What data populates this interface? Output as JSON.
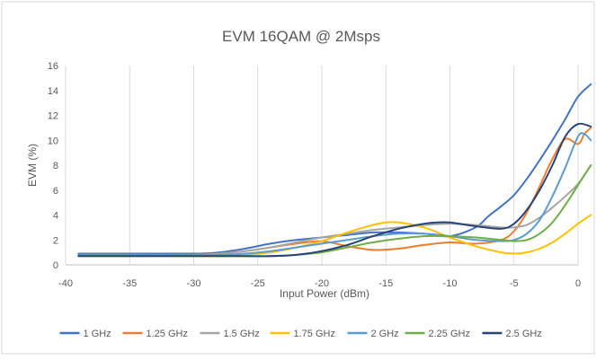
{
  "chart_data": {
    "type": "line",
    "title": "EVM 16QAM @ 2Msps",
    "xlabel": "Input Power (dBm)",
    "ylabel": "EVM (%)",
    "xlim": [
      -40,
      0
    ],
    "ylim": [
      0,
      16
    ],
    "xticks": [
      -40,
      -35,
      -30,
      -25,
      -20,
      -15,
      -10,
      -5,
      0
    ],
    "yticks": [
      0,
      2,
      4,
      6,
      8,
      10,
      12,
      14,
      16
    ],
    "grid": "vertical",
    "legend_position": "bottom",
    "series": [
      {
        "name": "1 GHz",
        "color": "#4472C4",
        "x": [
          -39,
          -35,
          -30,
          -28,
          -26,
          -24,
          -22,
          -20,
          -18,
          -16,
          -14,
          -12,
          -10,
          -8,
          -7,
          -6,
          -5,
          -4,
          -3,
          -2,
          -1,
          0,
          1
        ],
        "y": [
          0.9,
          0.9,
          0.9,
          1.0,
          1.3,
          1.7,
          2.0,
          2.2,
          2.4,
          2.6,
          2.6,
          2.5,
          2.3,
          3.0,
          3.9,
          4.7,
          5.6,
          6.9,
          8.4,
          10.0,
          11.7,
          13.5,
          14.5
        ]
      },
      {
        "name": "1.25 GHz",
        "color": "#ED7D31",
        "x": [
          -39,
          -35,
          -30,
          -28,
          -26,
          -24,
          -22,
          -20,
          -18,
          -16,
          -14,
          -12,
          -10,
          -8,
          -6,
          -5,
          -4,
          -3,
          -2,
          -1,
          0,
          0.5,
          1
        ],
        "y": [
          0.8,
          0.8,
          0.8,
          0.9,
          1.1,
          1.4,
          1.7,
          1.9,
          1.5,
          1.2,
          1.3,
          1.6,
          1.8,
          1.7,
          2.0,
          2.7,
          4.2,
          6.3,
          8.5,
          10.1,
          9.7,
          10.5,
          11.0
        ]
      },
      {
        "name": "1.5 GHz",
        "color": "#A5A5A5",
        "x": [
          -39,
          -35,
          -30,
          -28,
          -26,
          -24,
          -22,
          -20,
          -18,
          -16,
          -14,
          -12,
          -10,
          -8,
          -6,
          -5,
          -4,
          -3,
          -2,
          -1,
          0,
          1
        ],
        "y": [
          0.8,
          0.8,
          0.8,
          0.9,
          1.1,
          1.4,
          1.8,
          2.2,
          2.5,
          2.8,
          3.0,
          3.2,
          3.3,
          3.2,
          3.0,
          3.0,
          3.2,
          3.8,
          4.6,
          5.5,
          6.5,
          8.0
        ]
      },
      {
        "name": "1.75 GHz",
        "color": "#FFC000",
        "x": [
          -39,
          -35,
          -30,
          -28,
          -26,
          -24,
          -22,
          -20,
          -18,
          -16,
          -15,
          -14,
          -12,
          -10,
          -8,
          -6,
          -5,
          -4,
          -3,
          -2,
          -1,
          0,
          1
        ],
        "y": [
          0.7,
          0.7,
          0.7,
          0.7,
          0.8,
          1.0,
          1.4,
          1.9,
          2.6,
          3.2,
          3.4,
          3.4,
          3.0,
          2.2,
          1.5,
          1.0,
          0.9,
          1.0,
          1.3,
          1.8,
          2.5,
          3.3,
          4.0
        ]
      },
      {
        "name": "2 GHz",
        "color": "#5B9BD5",
        "x": [
          -39,
          -35,
          -30,
          -28,
          -26,
          -24,
          -22,
          -20,
          -18,
          -16,
          -14,
          -12,
          -10,
          -8,
          -6,
          -5,
          -4,
          -3,
          -2,
          -1,
          0,
          0.5,
          1
        ],
        "y": [
          0.8,
          0.8,
          0.8,
          0.8,
          0.9,
          1.1,
          1.4,
          1.7,
          2.0,
          2.3,
          2.5,
          2.5,
          2.3,
          2.0,
          1.9,
          2.0,
          2.5,
          3.6,
          5.5,
          7.8,
          10.3,
          10.5,
          10.0
        ]
      },
      {
        "name": "2.25 GHz",
        "color": "#70AD47",
        "x": [
          -39,
          -35,
          -30,
          -28,
          -26,
          -24,
          -22,
          -20,
          -18,
          -16,
          -14,
          -12,
          -10,
          -8,
          -6,
          -5,
          -4,
          -3,
          -2,
          -1,
          0,
          1
        ],
        "y": [
          0.7,
          0.7,
          0.7,
          0.7,
          0.7,
          0.7,
          0.8,
          1.0,
          1.4,
          1.8,
          2.1,
          2.3,
          2.3,
          2.2,
          2.0,
          1.9,
          2.0,
          2.5,
          3.4,
          4.8,
          6.4,
          8.0
        ]
      },
      {
        "name": "2.5 GHz",
        "color": "#264478",
        "x": [
          -39,
          -35,
          -30,
          -28,
          -26,
          -24,
          -22,
          -20,
          -18,
          -16,
          -14,
          -12,
          -11,
          -10,
          -8,
          -6,
          -5,
          -4,
          -3,
          -2,
          -1,
          0,
          1
        ],
        "y": [
          0.7,
          0.7,
          0.7,
          0.7,
          0.7,
          0.7,
          0.8,
          1.1,
          1.6,
          2.3,
          2.9,
          3.3,
          3.4,
          3.4,
          3.1,
          2.9,
          3.3,
          4.4,
          6.0,
          8.0,
          10.3,
          11.3,
          11.1
        ]
      }
    ]
  }
}
